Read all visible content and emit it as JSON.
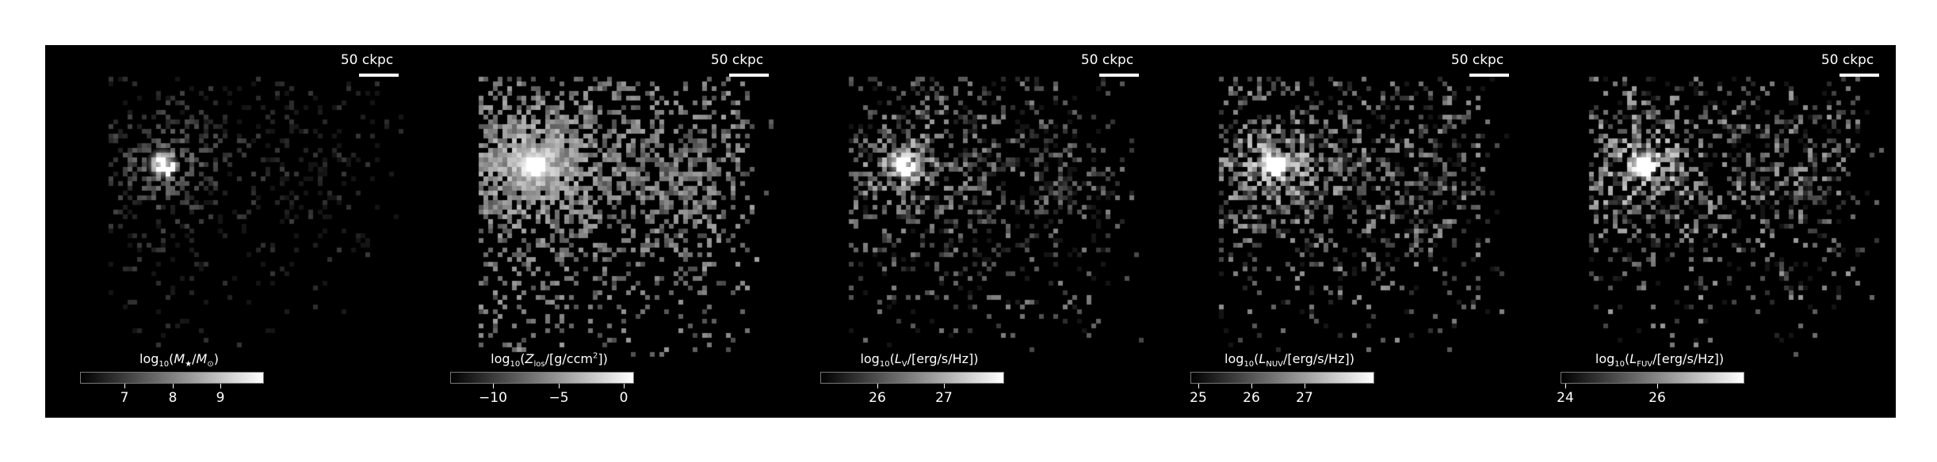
{
  "scale_bar_label": "50 ckpc",
  "panels": [
    {
      "colorbar_label": "log₁₀(M★/M⊙)",
      "ticks": [
        {
          "value": 7,
          "label": "7"
        },
        {
          "value": 8,
          "label": "8"
        },
        {
          "value": 9,
          "label": "9"
        }
      ],
      "colorbar_range": [
        6.1,
        9.8
      ]
    },
    {
      "colorbar_label": "log₁₀(Z_los/[g/ccm²])",
      "ticks": [
        {
          "value": -10,
          "label": "−10"
        },
        {
          "value": -5,
          "label": "−5"
        },
        {
          "value": 0,
          "label": "0"
        }
      ],
      "colorbar_range": [
        -13.3,
        0.8
      ]
    },
    {
      "colorbar_label": "log₁₀(L_V/[erg/s/Hz])",
      "ticks": [
        {
          "value": 26,
          "label": "26"
        },
        {
          "value": 27,
          "label": "27"
        }
      ],
      "colorbar_range": [
        25.1,
        27.9
      ]
    },
    {
      "colorbar_label": "log₁₀(L_NUV/[erg/s/Hz])",
      "ticks": [
        {
          "value": 25,
          "label": "25"
        },
        {
          "value": 26,
          "label": "26"
        },
        {
          "value": 27,
          "label": "27"
        }
      ],
      "colorbar_range": [
        24.2,
        27.7
      ]
    },
    {
      "colorbar_label": "log₁₀(L_FUV/[erg/s/Hz])",
      "ticks": [
        {
          "value": 24,
          "label": "24"
        },
        {
          "value": 26,
          "label": "26"
        }
      ],
      "colorbar_range": [
        23.8,
        27.8
      ]
    }
  ]
}
